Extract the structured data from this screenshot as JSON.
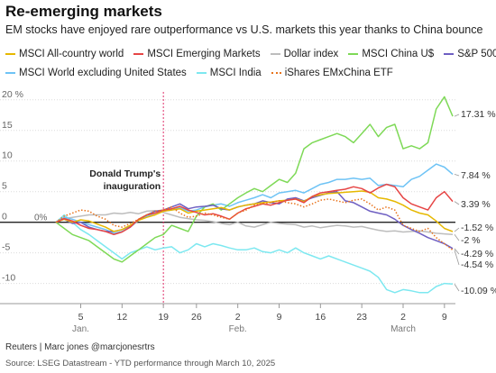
{
  "title": "Re-emerging markets",
  "subtitle": "EM stocks have enjoyed rare outperformance vs U.S. markets this year thanks to China bounce",
  "footer": {
    "credit": "Reuters | Marc jones @marcjonesrtrs",
    "source": "Source: LSEG Datastream - YTD performance through March 10, 2025"
  },
  "chart_data": {
    "type": "line",
    "ylim": [
      -13,
      21
    ],
    "xlim": [
      0,
      48
    ],
    "y_ticks": [
      {
        "v": 20,
        "label": "20 %"
      },
      {
        "v": 15,
        "label": "15"
      },
      {
        "v": 10,
        "label": "10"
      },
      {
        "v": 5,
        "label": "5"
      },
      {
        "v": 0,
        "label": "0"
      },
      {
        "v": -5,
        "label": "-5"
      },
      {
        "v": -10,
        "label": "-10"
      }
    ],
    "x_ticks": [
      {
        "x": 3,
        "label": "5"
      },
      {
        "x": 8,
        "label": "12"
      },
      {
        "x": 13,
        "label": "19"
      },
      {
        "x": 17,
        "label": "26"
      },
      {
        "x": 22,
        "label": "2"
      },
      {
        "x": 27,
        "label": "9"
      },
      {
        "x": 32,
        "label": "16"
      },
      {
        "x": 37,
        "label": "23"
      },
      {
        "x": 42,
        "label": "2"
      },
      {
        "x": 47,
        "label": "9"
      }
    ],
    "month_labels": [
      {
        "x": 3,
        "label": "Jan."
      },
      {
        "x": 22,
        "label": "Feb."
      },
      {
        "x": 42,
        "label": "March"
      }
    ],
    "zero_label": "0%",
    "annotation": {
      "x": 13,
      "text_line1": "Donald Trump's",
      "text_line2": "inauguration"
    },
    "series": [
      {
        "name": "MSCI All-country world",
        "color": "#e6b800",
        "dash": false,
        "end_label": "-1.52 %",
        "values": [
          0,
          0.5,
          0,
          0.4,
          0.2,
          -0.3,
          -0.8,
          -1.5,
          -1.2,
          -0.5,
          0.3,
          0.8,
          1.2,
          1.8,
          2.0,
          2.2,
          1.5,
          1.8,
          2.0,
          2.2,
          2.4,
          2.0,
          2.5,
          2.8,
          3.0,
          3.2,
          3.3,
          3.5,
          3.6,
          3.8,
          3.4,
          4.2,
          4.5,
          4.7,
          4.8,
          4.9,
          5.0,
          5.1,
          4.9,
          4.0,
          3.8,
          3.4,
          2.8,
          2.0,
          1.5,
          1.2,
          0.2,
          -1.0,
          -1.52
        ]
      },
      {
        "name": "MSCI Emerging Markets",
        "color": "#e64545",
        "dash": false,
        "end_label": "3.39 %",
        "values": [
          0,
          0.6,
          0.2,
          -0.5,
          -1.0,
          -1.2,
          -1.5,
          -2.0,
          -1.6,
          -0.8,
          0.5,
          1.2,
          1.5,
          2.0,
          2.2,
          2.6,
          2.0,
          1.6,
          1.2,
          1.4,
          1.0,
          0.5,
          1.5,
          2.2,
          2.6,
          3.0,
          2.8,
          3.2,
          3.6,
          3.8,
          3.2,
          4.2,
          4.8,
          5.0,
          5.2,
          5.4,
          5.8,
          5.5,
          4.8,
          5.6,
          6.2,
          5.8,
          4.0,
          3.0,
          2.5,
          2.0,
          4.0,
          5.0,
          3.39
        ]
      },
      {
        "name": "Dollar index",
        "color": "#bdbdbd",
        "dash": false,
        "end_label": "-2 %",
        "values": [
          0,
          0.6,
          0.8,
          1.0,
          1.2,
          1.2,
          1.2,
          1.5,
          1.4,
          1.6,
          1.4,
          1.8,
          1.9,
          1.6,
          1.2,
          0.8,
          0.6,
          0.4,
          0.3,
          0.1,
          -0.2,
          -0.4,
          0.0,
          -0.6,
          -0.8,
          -0.4,
          0.0,
          -0.2,
          -0.3,
          -0.4,
          -0.8,
          -0.6,
          -0.9,
          -0.7,
          -0.5,
          -0.6,
          -0.8,
          -0.7,
          -1.0,
          -1.3,
          -1.5,
          -1.4,
          -1.6,
          -1.5,
          -1.4,
          -1.6,
          -1.8,
          -1.9,
          -2.0
        ]
      },
      {
        "name": "MSCI China U$",
        "color": "#7ed957",
        "dash": false,
        "end_label": "17.31 %",
        "values": [
          0,
          -1.0,
          -2.0,
          -2.5,
          -3.0,
          -4.0,
          -5.0,
          -6.0,
          -6.5,
          -5.5,
          -4.5,
          -3.5,
          -2.5,
          -2.0,
          -0.5,
          -1.0,
          -1.5,
          1.0,
          2.5,
          3.0,
          2.0,
          3.0,
          4.0,
          4.8,
          5.5,
          5.0,
          6.0,
          7.0,
          6.5,
          8.0,
          12.0,
          13.0,
          13.5,
          14.0,
          14.5,
          14.0,
          13.0,
          14.5,
          16.0,
          14.0,
          15.5,
          16.0,
          12.0,
          12.5,
          12.0,
          13.0,
          18.5,
          20.5,
          17.31
        ]
      },
      {
        "name": "S&P 500",
        "color": "#6e5fc2",
        "dash": false,
        "end_label": "-4.29 %",
        "values": [
          0,
          0.5,
          -0.2,
          0.0,
          -0.8,
          -1.2,
          -1.5,
          -1.5,
          -1.2,
          -0.6,
          0.4,
          1.2,
          1.8,
          2.0,
          2.5,
          3.0,
          2.2,
          2.5,
          2.6,
          2.8,
          2.2,
          2.0,
          2.5,
          2.8,
          3.0,
          3.5,
          3.2,
          3.0,
          3.8,
          4.0,
          3.5,
          4.0,
          4.4,
          4.8,
          5.0,
          3.5,
          3.2,
          2.5,
          1.8,
          1.5,
          1.2,
          0.5,
          -0.5,
          -1.2,
          -1.8,
          -2.5,
          -3.0,
          -3.5,
          -4.29
        ]
      },
      {
        "name": "MSCI World excluding United States",
        "color": "#6ec3f5",
        "dash": false,
        "end_label": "7.84 %",
        "values": [
          0,
          0.8,
          0.5,
          0.0,
          -0.4,
          -0.8,
          -1.2,
          -1.8,
          -1.5,
          -0.8,
          0.3,
          1.0,
          1.5,
          1.8,
          2.0,
          2.4,
          1.8,
          2.0,
          2.5,
          2.8,
          3.0,
          2.6,
          3.2,
          3.6,
          4.0,
          4.5,
          4.0,
          4.8,
          5.0,
          5.2,
          4.8,
          5.5,
          6.2,
          6.5,
          7.0,
          7.0,
          7.2,
          7.0,
          7.2,
          6.0,
          6.2,
          6.0,
          5.8,
          7.0,
          7.5,
          8.5,
          9.5,
          9.0,
          7.84
        ]
      },
      {
        "name": "MSCI India",
        "color": "#7de8f0",
        "dash": false,
        "end_label": "-10.09 %",
        "values": [
          0,
          1.2,
          0.0,
          -1.2,
          -2.0,
          -3.0,
          -4.0,
          -5.0,
          -6.0,
          -5.0,
          -4.5,
          -4.0,
          -4.5,
          -4.2,
          -4.0,
          -5.0,
          -4.5,
          -3.5,
          -4.0,
          -3.5,
          -3.8,
          -4.2,
          -4.5,
          -4.5,
          -4.2,
          -4.8,
          -5.0,
          -4.5,
          -5.0,
          -4.2,
          -5.0,
          -5.5,
          -6.0,
          -5.5,
          -6.0,
          -6.5,
          -7.0,
          -7.5,
          -8.0,
          -9.0,
          -11.0,
          -11.5,
          -11.0,
          -11.2,
          -11.5,
          -11.5,
          -10.5,
          -10.0,
          -10.09
        ]
      },
      {
        "name": "iShares EMxChina ETF",
        "color": "#e8731c",
        "dash": true,
        "end_label": "-4.54 %",
        "values": [
          0,
          1.0,
          1.5,
          2.0,
          1.8,
          1.0,
          0.5,
          -0.5,
          -0.8,
          -0.2,
          0.5,
          1.2,
          1.8,
          2.0,
          2.5,
          1.5,
          0.8,
          1.0,
          1.5,
          1.2,
          0.8,
          0.5,
          1.5,
          2.0,
          2.8,
          3.0,
          3.2,
          3.5,
          3.2,
          3.0,
          2.5,
          3.0,
          3.6,
          3.8,
          3.5,
          3.2,
          3.6,
          3.8,
          3.0,
          2.0,
          2.5,
          2.0,
          -0.5,
          -1.0,
          -1.5,
          -1.0,
          -2.5,
          -3.5,
          -4.54
        ]
      }
    ]
  }
}
